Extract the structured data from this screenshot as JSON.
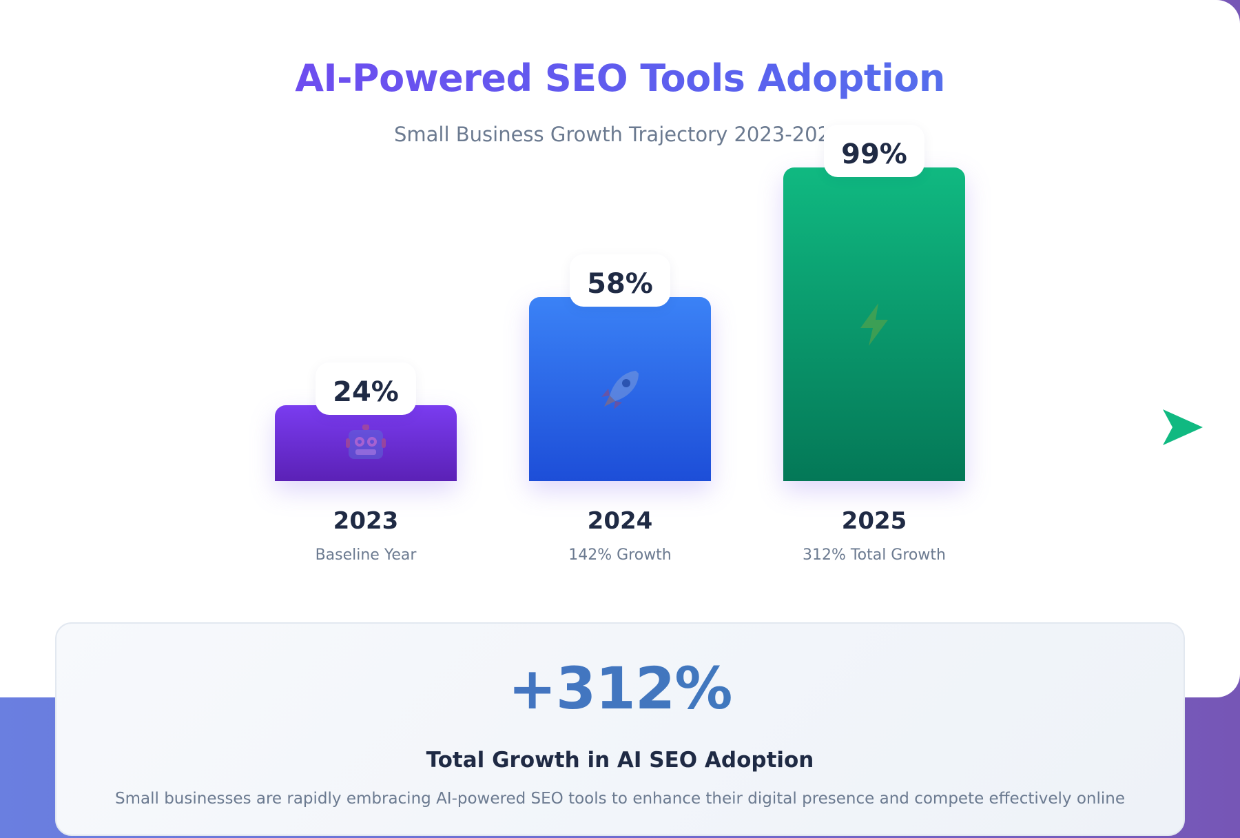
{
  "chart_data": {
    "type": "bar",
    "title": "AI-Powered SEO Tools Adoption",
    "subtitle": "Small Business Growth Trajectory 2023-2025",
    "categories": [
      "2023",
      "2024",
      "2025"
    ],
    "values": [
      24,
      58,
      99
    ],
    "value_labels": [
      "24%",
      "58%",
      "99%"
    ],
    "captions": [
      "Baseline Year",
      "142% Growth",
      "312% Total Growth"
    ],
    "ylim": [
      0,
      100
    ],
    "grid": false,
    "colors": [
      "#7c3aed",
      "#3b82f6",
      "#10b981"
    ],
    "icons": [
      "robot-icon",
      "rocket-icon",
      "lightning-icon"
    ]
  },
  "summary": {
    "value": "+312%",
    "title": "Total Growth in AI SEO Adoption",
    "description": "Small businesses are rapidly embracing AI-powered SEO tools to enhance their digital presence and compete effectively online"
  },
  "next_icon": "play-arrow-icon",
  "accent_color": "#10b981"
}
